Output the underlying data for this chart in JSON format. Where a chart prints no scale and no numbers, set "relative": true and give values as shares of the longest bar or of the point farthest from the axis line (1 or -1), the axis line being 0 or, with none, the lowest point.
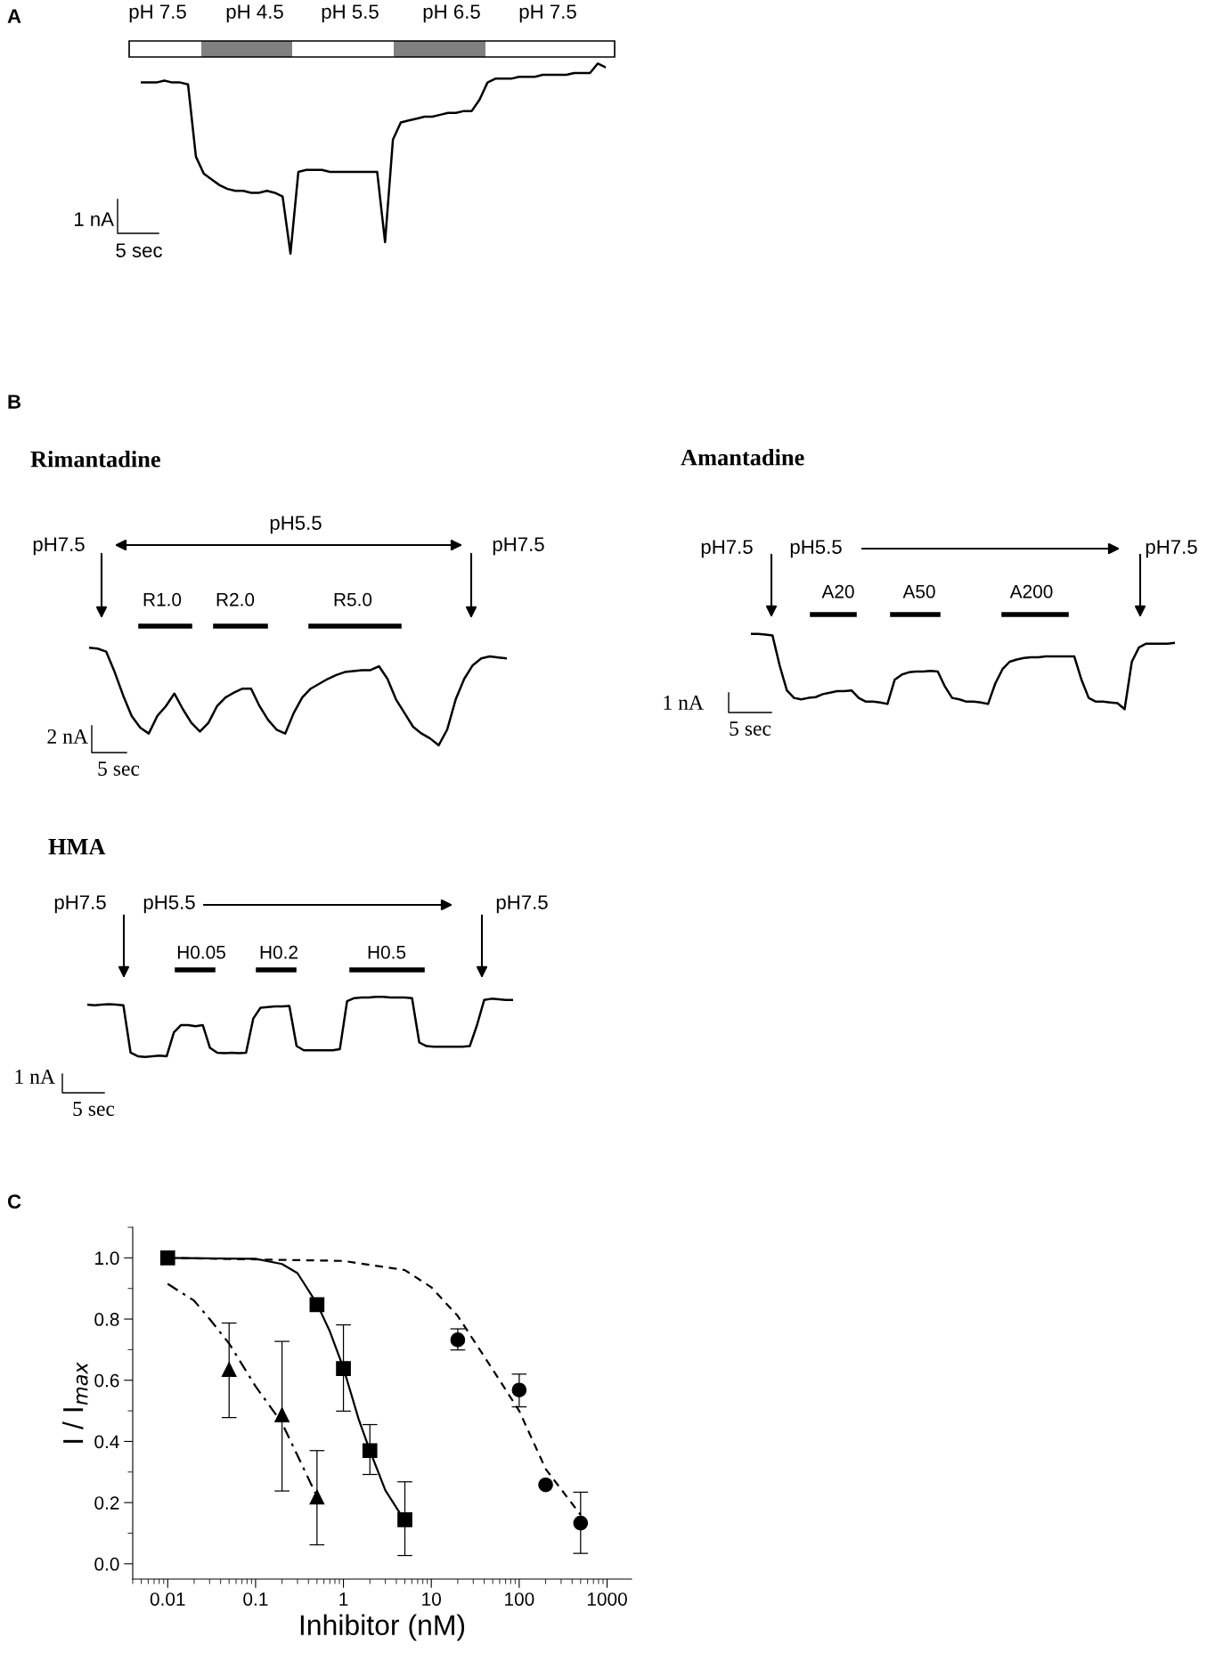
{
  "chart_data": [
    {
      "type": "line",
      "relative": true,
      "color": "#000000",
      "annotations": [
        "A",
        "pH 7.5",
        "pH 4.5",
        "pH 5.5",
        "pH 6.5",
        "pH 7.5",
        "1 nA",
        "5 sec"
      ],
      "categories": [
        null,
        null,
        null,
        null,
        null,
        null,
        null,
        null,
        null,
        null,
        null,
        null,
        null,
        null,
        null,
        null,
        null,
        null,
        null,
        null,
        null,
        null,
        null,
        null,
        null,
        null,
        null,
        null,
        null,
        null,
        null,
        null,
        null,
        null,
        null,
        null,
        null,
        null,
        null,
        null,
        null,
        null,
        null,
        null,
        null,
        null,
        null,
        null,
        null,
        null,
        null,
        null,
        null,
        null,
        null,
        null,
        null,
        null,
        null,
        null
      ],
      "values": [
        0.9,
        0.9,
        0.9,
        0.91,
        0.9,
        0.9,
        0.89,
        0.51,
        0.42,
        0.39,
        0.36,
        0.34,
        0.33,
        0.33,
        0.32,
        0.32,
        0.33,
        0.32,
        0.3,
        0,
        0.43,
        0.44,
        0.44,
        0.44,
        0.43,
        0.43,
        0.43,
        0.43,
        0.43,
        0.43,
        0.43,
        0.06,
        0.6,
        0.69,
        0.7,
        0.71,
        0.72,
        0.72,
        0.73,
        0.74,
        0.74,
        0.75,
        0.75,
        0.81,
        0.9,
        0.92,
        0.92,
        0.92,
        0.93,
        0.93,
        0.93,
        0.94,
        0.94,
        0.94,
        0.94,
        0.95,
        0.95,
        0.95,
        1.0,
        0.98
      ]
    },
    {
      "type": "line",
      "relative": true,
      "color": "#000000",
      "title": "Rimantadine",
      "annotations": [
        "B",
        "pH7.5",
        "pH5.5",
        "pH7.5",
        "R1.0",
        "R2.0",
        "R5.0",
        "2 nA",
        "5 sec"
      ],
      "categories": [
        null,
        null,
        null,
        null,
        null,
        null,
        null,
        null,
        null,
        null,
        null,
        null,
        null,
        null,
        null,
        null,
        null,
        null,
        null,
        null,
        null,
        null,
        null,
        null,
        null,
        null,
        null,
        null,
        null,
        null,
        null,
        null,
        null,
        null,
        null,
        null,
        null,
        null,
        null,
        null,
        null,
        null,
        null,
        null,
        null,
        null,
        null,
        null,
        null,
        null
      ],
      "values": [
        1.0,
        0.99,
        0.96,
        0.75,
        0.51,
        0.3,
        0.18,
        0.12,
        0.3,
        0.4,
        0.53,
        0.37,
        0.23,
        0.14,
        0.23,
        0.4,
        0.49,
        0.54,
        0.58,
        0.58,
        0.4,
        0.26,
        0.16,
        0.12,
        0.33,
        0.49,
        0.58,
        0.63,
        0.68,
        0.72,
        0.75,
        0.76,
        0.77,
        0.77,
        0.81,
        0.68,
        0.47,
        0.33,
        0.19,
        0.12,
        0.07,
        0,
        0.16,
        0.47,
        0.68,
        0.82,
        0.89,
        0.91,
        0.9,
        0.89
      ]
    },
    {
      "type": "line",
      "relative": true,
      "color": "#000000",
      "title": "Amantadine",
      "annotations": [
        "pH7.5",
        "pH5.5",
        "pH7.5",
        "A20",
        "A50",
        "A200",
        "1 nA",
        "5 sec"
      ],
      "categories": [
        null,
        null,
        null,
        null,
        null,
        null,
        null,
        null,
        null,
        null,
        null,
        null,
        null,
        null,
        null,
        null,
        null,
        null,
        null,
        null,
        null,
        null,
        null,
        null,
        null,
        null,
        null,
        null,
        null,
        null,
        null,
        null,
        null,
        null,
        null,
        null,
        null,
        null,
        null,
        null,
        null,
        null,
        null,
        null,
        null,
        null,
        null,
        null,
        null,
        null,
        null,
        null,
        null,
        null,
        null,
        null,
        null,
        null,
        null,
        null
      ],
      "values": [
        1.0,
        1.0,
        0.99,
        0.98,
        0.58,
        0.25,
        0.15,
        0.13,
        0.15,
        0.16,
        0.2,
        0.22,
        0.24,
        0.24,
        0.25,
        0.15,
        0.1,
        0.1,
        0.09,
        0.07,
        0.39,
        0.46,
        0.49,
        0.5,
        0.5,
        0.51,
        0.5,
        0.3,
        0.15,
        0.13,
        0.1,
        0.1,
        0.09,
        0.07,
        0.34,
        0.53,
        0.63,
        0.66,
        0.68,
        0.69,
        0.69,
        0.7,
        0.7,
        0.7,
        0.7,
        0.7,
        0.39,
        0.15,
        0.1,
        0.1,
        0.09,
        0.08,
        0,
        0.63,
        0.82,
        0.87,
        0.87,
        0.87,
        0.87,
        0.88
      ]
    },
    {
      "type": "line",
      "relative": true,
      "color": "#000000",
      "title": "HMA",
      "annotations": [
        "pH7.5",
        "pH5.5",
        "pH7.5",
        "H0.05",
        "H0.2",
        "H0.5",
        "1 nA",
        "5 sec"
      ],
      "categories": [
        null,
        null,
        null,
        null,
        null,
        null,
        null,
        null,
        null,
        null,
        null,
        null,
        null,
        null,
        null,
        null,
        null,
        null,
        null,
        null,
        null,
        null,
        null,
        null,
        null,
        null,
        null,
        null,
        null,
        null,
        null,
        null,
        null,
        null,
        null,
        null,
        null,
        null,
        null,
        null,
        null,
        null,
        null,
        null,
        null,
        null,
        null,
        null,
        null,
        null,
        null,
        null,
        null,
        null,
        null,
        null,
        null,
        null,
        null,
        null
      ],
      "values": [
        0.87,
        0.86,
        0.87,
        0.88,
        0.87,
        0.86,
        0.07,
        0.01,
        0,
        0.01,
        0.02,
        0.01,
        0.41,
        0.53,
        0.53,
        0.51,
        0.53,
        0.15,
        0.07,
        0.06,
        0.07,
        0.06,
        0.07,
        0.64,
        0.82,
        0.83,
        0.84,
        0.84,
        0.85,
        0.18,
        0.11,
        0.11,
        0.11,
        0.11,
        0.11,
        0.13,
        0.93,
        0.98,
        0.99,
        0.99,
        1.0,
        1.0,
        0.99,
        0.99,
        0.99,
        0.98,
        0.24,
        0.18,
        0.17,
        0.17,
        0.17,
        0.17,
        0.17,
        0.18,
        0.53,
        0.95,
        0.97,
        0.96,
        0.95,
        0.95
      ]
    },
    {
      "type": "scatter",
      "xlabel": "Inhibitor (nM)",
      "ylabel": "I / I$_{max}$",
      "log": "x",
      "xlim": [
        0.004,
        1900
      ],
      "xticks": [
        0.01,
        0.1,
        1,
        10,
        100,
        1000
      ],
      "ylim": [
        -0.05,
        1.1
      ],
      "yticks": [
        {
          "value": 0,
          "label": "0.0"
        },
        {
          "value": 0.2,
          "label": "0.2"
        },
        {
          "value": 0.4,
          "label": "0.4"
        },
        {
          "value": 0.6,
          "label": "0.6"
        },
        {
          "value": 0.8,
          "label": "0.8"
        },
        {
          "value": 1.0,
          "label": "1.0"
        }
      ],
      "annotations": [
        "C"
      ],
      "series": [
        {
          "type": "line",
          "color": "#000000",
          "line_style": "dashdot",
          "x": [
            0.01,
            0.02,
            0.03,
            0.05,
            0.1,
            0.2,
            0.5
          ],
          "values": [
            0.915,
            0.86,
            0.8,
            0.72,
            0.58,
            0.46,
            0.22
          ]
        },
        {
          "type": "line",
          "color": "#000000",
          "line_style": "solid",
          "x": [
            0.01,
            0.1,
            0.2,
            0.3,
            0.5,
            0.7,
            1,
            1.5,
            2,
            3,
            5
          ],
          "values": [
            1.0,
            0.997,
            0.98,
            0.95,
            0.85,
            0.76,
            0.64,
            0.47,
            0.37,
            0.24,
            0.14
          ]
        },
        {
          "type": "line",
          "color": "#000000",
          "line_style": "dashed",
          "x": [
            0.01,
            1,
            5,
            10,
            20,
            50,
            100,
            200,
            500
          ],
          "values": [
            1.0,
            0.99,
            0.96,
            0.904,
            0.81,
            0.635,
            0.5,
            0.31,
            0.16
          ]
        },
        {
          "color": "#000000",
          "marker": "circle",
          "x": [
            20,
            100,
            200,
            500
          ],
          "values": [
            0.732,
            0.568,
            0.258,
            0.133
          ],
          "errors": [
            [
              0.699,
              0.768
            ],
            [
              0.513,
              0.62
            ],
            null,
            [
              0.034,
              0.234
            ]
          ]
        },
        {
          "color": "#000000",
          "marker": "square",
          "x": [
            0.01,
            0.5,
            1,
            2,
            5
          ],
          "values": [
            1.0,
            0.847,
            0.638,
            0.37,
            0.144
          ],
          "errors": [
            null,
            null,
            [
              0.499,
              0.781
            ],
            [
              0.292,
              0.455
            ],
            [
              0.027,
              0.268
            ]
          ]
        },
        {
          "color": "#000000",
          "marker": "triangle",
          "x": [
            0.05,
            0.2,
            0.5
          ],
          "values": [
            0.635,
            0.487,
            0.218
          ],
          "errors": [
            [
              0.478,
              0.787
            ],
            [
              0.238,
              0.727
            ],
            [
              0.062,
              0.37
            ]
          ]
        }
      ]
    }
  ]
}
